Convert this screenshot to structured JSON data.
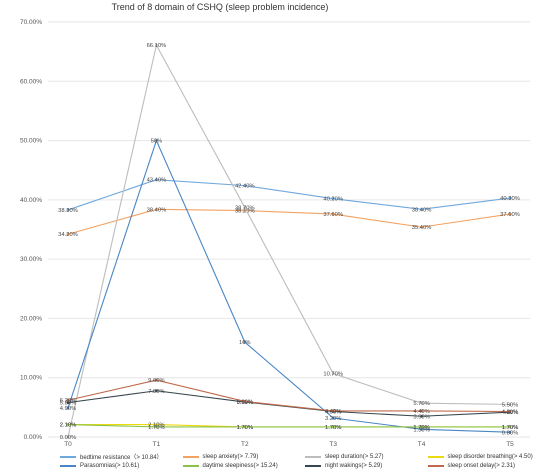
{
  "chart_data": {
    "type": "line",
    "title": "Trend of 8 domain of CSHQ (sleep problem incidence)",
    "categories": [
      "T0",
      "T1",
      "T2",
      "T3",
      "T4",
      "T5"
    ],
    "y_tick_labels": [
      "0.00%",
      "10.00%",
      "20.00%",
      "30.00%",
      "40.00%",
      "50.00%",
      "60.00%",
      "70.00%"
    ],
    "ylim": [
      0,
      70
    ],
    "grid": "horizontal",
    "legend_position": "bottom",
    "series": [
      {
        "name": "bedtime resistance（> 10.84）",
        "color": "#6fa8dc",
        "values": [
          38.3,
          43.4,
          42.4,
          40.2,
          38.4,
          40.3
        ],
        "labels": [
          "38.30%",
          "43.40%",
          "42.40%",
          "40.20%",
          "38.40%",
          "40.30%"
        ]
      },
      {
        "name": "sleep anxiety(> 7.79)",
        "color": "#f4a261",
        "values": [
          34.2,
          38.4,
          38.2,
          37.6,
          35.4,
          37.6
        ],
        "labels": [
          "34.20%",
          "38.40%",
          "38.20%",
          "37.60%",
          "35.40%",
          "37.60%"
        ]
      },
      {
        "name": "sleep duration(> 5.27)",
        "color": "#bdbdbd",
        "values": [
          0,
          66.1,
          38.7,
          10.7,
          5.7,
          5.5
        ],
        "labels": [
          "0.00%",
          "66.10%",
          "38.70%",
          "10.70%",
          "5.70%",
          "5.50%"
        ]
      },
      {
        "name": "sleep disorder breathing(> 4.50)",
        "color": "#ecd90e",
        "values": [
          2.1,
          2.1,
          1.7,
          1.7,
          1.7,
          1.7
        ],
        "labels": [
          "2.10%",
          "2.10%",
          "1.70%",
          "1.70%",
          "1.70%",
          "1.70%"
        ]
      },
      {
        "name": "Parasomnias(> 10.61)",
        "color": "#4a86c5",
        "values": [
          4.9,
          50,
          16,
          3.2,
          1.3,
          0.8
        ],
        "labels": [
          "4.90%",
          "50%",
          "16%",
          "3.20%",
          "1.30%",
          "0.80%"
        ]
      },
      {
        "name": "daytime sleepiness(> 15.24)",
        "color": "#8bc34a",
        "values": [
          2.1,
          1.7,
          1.7,
          1.7,
          1.7,
          1.7
        ],
        "labels": [
          "2.10%",
          "1.70%",
          "1.70%",
          "1.70%",
          "1.70%",
          "1.70%"
        ]
      },
      {
        "name": "night wakings(> 5.29)",
        "color": "#37474f",
        "values": [
          5.8,
          7.8,
          5.9,
          4.3,
          3.5,
          4.2
        ],
        "labels": [
          "5.80%",
          "7.80%",
          "5.90%",
          "4.30%",
          "3.50%",
          "4.20%"
        ]
      },
      {
        "name": "sleep onset delay(> 2.31)",
        "color": "#c0694a",
        "values": [
          6.2,
          9.6,
          6.0,
          4.4,
          4.4,
          4.3
        ],
        "labels": [
          "6.20%",
          "9.60%",
          "6.00%",
          "4.40%",
          "4.40%",
          "4.30%"
        ]
      }
    ]
  }
}
